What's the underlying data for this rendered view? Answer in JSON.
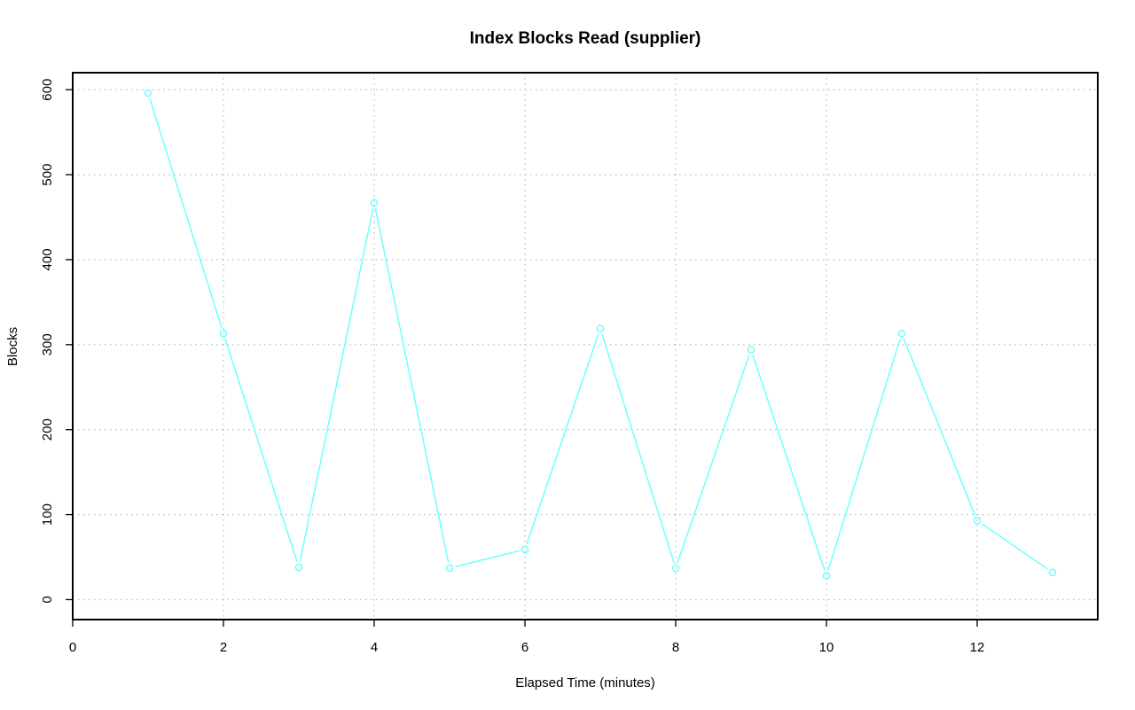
{
  "chart_data": {
    "type": "line",
    "title": "Index Blocks Read (supplier)",
    "xlabel": "Elapsed Time (minutes)",
    "ylabel": "Blocks",
    "xlim": [
      0,
      13.6
    ],
    "ylim": [
      -23.5,
      620
    ],
    "x_ticks": [
      0,
      2,
      4,
      6,
      8,
      10,
      12
    ],
    "y_ticks": [
      0,
      100,
      200,
      300,
      400,
      500,
      600
    ],
    "grid": true,
    "series": [
      {
        "color": "#66ffff",
        "x": [
          1,
          2,
          3,
          4,
          5,
          6,
          7,
          8,
          9,
          10,
          11,
          12,
          13
        ],
        "y": [
          596,
          313,
          38,
          467,
          37,
          59,
          319,
          37,
          294,
          28,
          313,
          93,
          32
        ]
      }
    ]
  }
}
